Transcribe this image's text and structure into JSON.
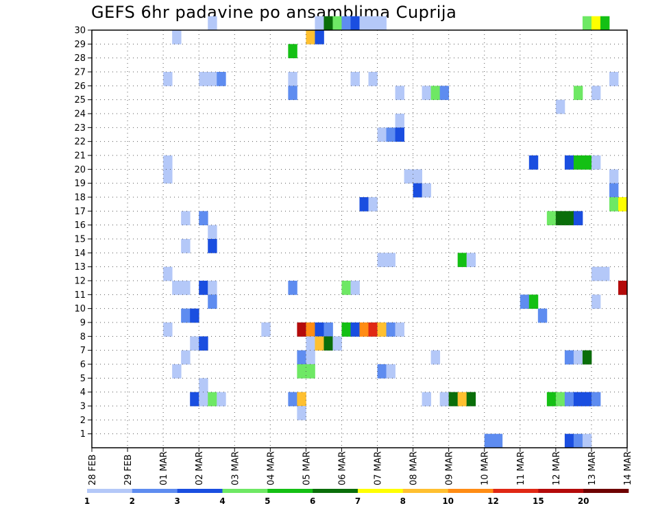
{
  "chart_data": {
    "type": "heatmap",
    "title": "GEFS 6hr padavine po ansamblima Cuprija",
    "y_categories": [
      "1",
      "2",
      "3",
      "4",
      "5",
      "6",
      "7",
      "8",
      "9",
      "10",
      "11",
      "12",
      "13",
      "14",
      "15",
      "16",
      "17",
      "18",
      "19",
      "20",
      "21",
      "22",
      "23",
      "24",
      "25",
      "26",
      "27",
      "28",
      "29",
      "30"
    ],
    "x_tick_labels": [
      "28 FEB",
      "29 FEB",
      "01 MAR",
      "02 MAR",
      "03 MAR",
      "04 MAR",
      "05 MAR",
      "06 MAR",
      "07 MAR",
      "08 MAR",
      "09 MAR",
      "10 MAR",
      "11 MAR",
      "12 MAR",
      "13 MAR",
      "14 MAR"
    ],
    "x_unit": "6-hour step",
    "xlim": [
      0,
      60
    ],
    "ylim": [
      0,
      30
    ],
    "grid": true,
    "legend": {
      "position": "bottom",
      "labels": [
        "1",
        "2",
        "3",
        "4",
        "5",
        "6",
        "7",
        "8",
        "10",
        "12",
        "15",
        "20"
      ],
      "colors": [
        "#b4c8f8",
        "#5e8cf0",
        "#1a4ee0",
        "#6ee864",
        "#14c014",
        "#0a6e0a",
        "#ffff00",
        "#ffc030",
        "#ff8c14",
        "#e02814",
        "#b40a0a",
        "#6e0000"
      ]
    },
    "cells": [
      {
        "member": 30,
        "step": 13,
        "color": "#b4c8f8"
      },
      {
        "member": 30,
        "step": 25,
        "color": "#b4c8f8"
      },
      {
        "member": 30,
        "step": 26,
        "color": "#0a6e0a"
      },
      {
        "member": 30,
        "step": 27,
        "color": "#6ee864"
      },
      {
        "member": 30,
        "step": 28,
        "color": "#5e8cf0"
      },
      {
        "member": 30,
        "step": 29,
        "color": "#1a4ee0"
      },
      {
        "member": 30,
        "step": 30,
        "color": "#b4c8f8"
      },
      {
        "member": 30,
        "step": 31,
        "color": "#b4c8f8"
      },
      {
        "member": 30,
        "step": 32,
        "color": "#b4c8f8"
      },
      {
        "member": 30,
        "step": 55,
        "color": "#6ee864"
      },
      {
        "member": 30,
        "step": 56,
        "color": "#ffff00"
      },
      {
        "member": 30,
        "step": 57,
        "color": "#14c014"
      },
      {
        "member": 29,
        "step": 9,
        "color": "#b4c8f8"
      },
      {
        "member": 29,
        "step": 24,
        "color": "#ffc030"
      },
      {
        "member": 29,
        "step": 25,
        "color": "#1a4ee0"
      },
      {
        "member": 28,
        "step": 22,
        "color": "#14c014"
      },
      {
        "member": 26,
        "step": 8,
        "color": "#b4c8f8"
      },
      {
        "member": 26,
        "step": 12,
        "color": "#b4c8f8"
      },
      {
        "member": 26,
        "step": 13,
        "color": "#b4c8f8"
      },
      {
        "member": 26,
        "step": 14,
        "color": "#5e8cf0"
      },
      {
        "member": 26,
        "step": 22,
        "color": "#b4c8f8"
      },
      {
        "member": 26,
        "step": 29,
        "color": "#b4c8f8"
      },
      {
        "member": 26,
        "step": 31,
        "color": "#b4c8f8"
      },
      {
        "member": 26,
        "step": 58,
        "color": "#b4c8f8"
      },
      {
        "member": 25,
        "step": 22,
        "color": "#5e8cf0"
      },
      {
        "member": 25,
        "step": 34,
        "color": "#b4c8f8"
      },
      {
        "member": 25,
        "step": 37,
        "color": "#b4c8f8"
      },
      {
        "member": 25,
        "step": 38,
        "color": "#6ee864"
      },
      {
        "member": 25,
        "step": 39,
        "color": "#5e8cf0"
      },
      {
        "member": 25,
        "step": 54,
        "color": "#6ee864"
      },
      {
        "member": 25,
        "step": 56,
        "color": "#b4c8f8"
      },
      {
        "member": 24,
        "step": 52,
        "color": "#b4c8f8"
      },
      {
        "member": 23,
        "step": 34,
        "color": "#b4c8f8"
      },
      {
        "member": 22,
        "step": 32,
        "color": "#b4c8f8"
      },
      {
        "member": 22,
        "step": 33,
        "color": "#5e8cf0"
      },
      {
        "member": 22,
        "step": 34,
        "color": "#1a4ee0"
      },
      {
        "member": 20,
        "step": 8,
        "color": "#b4c8f8"
      },
      {
        "member": 20,
        "step": 49,
        "color": "#1a4ee0"
      },
      {
        "member": 20,
        "step": 53,
        "color": "#1a4ee0"
      },
      {
        "member": 20,
        "step": 54,
        "color": "#14c014"
      },
      {
        "member": 20,
        "step": 55,
        "color": "#14c014"
      },
      {
        "member": 20,
        "step": 56,
        "color": "#b4c8f8"
      },
      {
        "member": 19,
        "step": 8,
        "color": "#b4c8f8"
      },
      {
        "member": 19,
        "step": 35,
        "color": "#b4c8f8"
      },
      {
        "member": 19,
        "step": 36,
        "color": "#b4c8f8"
      },
      {
        "member": 19,
        "step": 58,
        "color": "#b4c8f8"
      },
      {
        "member": 18,
        "step": 36,
        "color": "#1a4ee0"
      },
      {
        "member": 18,
        "step": 37,
        "color": "#b4c8f8"
      },
      {
        "member": 18,
        "step": 58,
        "color": "#5e8cf0"
      },
      {
        "member": 17,
        "step": 30,
        "color": "#1a4ee0"
      },
      {
        "member": 17,
        "step": 31,
        "color": "#b4c8f8"
      },
      {
        "member": 17,
        "step": 58,
        "color": "#6ee864"
      },
      {
        "member": 17,
        "step": 59,
        "color": "#ffff00"
      },
      {
        "member": 16,
        "step": 10,
        "color": "#b4c8f8"
      },
      {
        "member": 16,
        "step": 12,
        "color": "#5e8cf0"
      },
      {
        "member": 16,
        "step": 51,
        "color": "#6ee864"
      },
      {
        "member": 16,
        "step": 52,
        "color": "#0a6e0a"
      },
      {
        "member": 16,
        "step": 53,
        "color": "#0a6e0a"
      },
      {
        "member": 16,
        "step": 54,
        "color": "#1a4ee0"
      },
      {
        "member": 15,
        "step": 13,
        "color": "#b4c8f8"
      },
      {
        "member": 14,
        "step": 10,
        "color": "#b4c8f8"
      },
      {
        "member": 14,
        "step": 13,
        "color": "#1a4ee0"
      },
      {
        "member": 13,
        "step": 32,
        "color": "#b4c8f8"
      },
      {
        "member": 13,
        "step": 33,
        "color": "#b4c8f8"
      },
      {
        "member": 13,
        "step": 41,
        "color": "#14c014"
      },
      {
        "member": 13,
        "step": 42,
        "color": "#b4c8f8"
      },
      {
        "member": 12,
        "step": 8,
        "color": "#b4c8f8"
      },
      {
        "member": 12,
        "step": 56,
        "color": "#b4c8f8"
      },
      {
        "member": 12,
        "step": 57,
        "color": "#b4c8f8"
      },
      {
        "member": 11,
        "step": 9,
        "color": "#b4c8f8"
      },
      {
        "member": 11,
        "step": 10,
        "color": "#b4c8f8"
      },
      {
        "member": 11,
        "step": 12,
        "color": "#1a4ee0"
      },
      {
        "member": 11,
        "step": 13,
        "color": "#b4c8f8"
      },
      {
        "member": 11,
        "step": 22,
        "color": "#5e8cf0"
      },
      {
        "member": 11,
        "step": 28,
        "color": "#6ee864"
      },
      {
        "member": 11,
        "step": 29,
        "color": "#b4c8f8"
      },
      {
        "member": 11,
        "step": 59,
        "color": "#b40a0a"
      },
      {
        "member": 10,
        "step": 13,
        "color": "#5e8cf0"
      },
      {
        "member": 10,
        "step": 48,
        "color": "#5e8cf0"
      },
      {
        "member": 10,
        "step": 49,
        "color": "#14c014"
      },
      {
        "member": 10,
        "step": 56,
        "color": "#b4c8f8"
      },
      {
        "member": 9,
        "step": 10,
        "color": "#5e8cf0"
      },
      {
        "member": 9,
        "step": 11,
        "color": "#1a4ee0"
      },
      {
        "member": 9,
        "step": 50,
        "color": "#5e8cf0"
      },
      {
        "member": 8,
        "step": 8,
        "color": "#b4c8f8"
      },
      {
        "member": 8,
        "step": 19,
        "color": "#b4c8f8"
      },
      {
        "member": 8,
        "step": 23,
        "color": "#b40a0a"
      },
      {
        "member": 8,
        "step": 24,
        "color": "#ff8c14"
      },
      {
        "member": 8,
        "step": 25,
        "color": "#1a4ee0"
      },
      {
        "member": 8,
        "step": 26,
        "color": "#5e8cf0"
      },
      {
        "member": 8,
        "step": 28,
        "color": "#14c014"
      },
      {
        "member": 8,
        "step": 29,
        "color": "#1a4ee0"
      },
      {
        "member": 8,
        "step": 30,
        "color": "#ff8c14"
      },
      {
        "member": 8,
        "step": 31,
        "color": "#e02814"
      },
      {
        "member": 8,
        "step": 32,
        "color": "#ffc030"
      },
      {
        "member": 8,
        "step": 33,
        "color": "#5e8cf0"
      },
      {
        "member": 8,
        "step": 34,
        "color": "#b4c8f8"
      },
      {
        "member": 7,
        "step": 11,
        "color": "#b4c8f8"
      },
      {
        "member": 7,
        "step": 12,
        "color": "#1a4ee0"
      },
      {
        "member": 7,
        "step": 24,
        "color": "#b4c8f8"
      },
      {
        "member": 7,
        "step": 25,
        "color": "#ffc030"
      },
      {
        "member": 7,
        "step": 26,
        "color": "#0a6e0a"
      },
      {
        "member": 7,
        "step": 27,
        "color": "#b4c8f8"
      },
      {
        "member": 6,
        "step": 10,
        "color": "#b4c8f8"
      },
      {
        "member": 6,
        "step": 23,
        "color": "#5e8cf0"
      },
      {
        "member": 6,
        "step": 24,
        "color": "#b4c8f8"
      },
      {
        "member": 6,
        "step": 38,
        "color": "#b4c8f8"
      },
      {
        "member": 6,
        "step": 53,
        "color": "#5e8cf0"
      },
      {
        "member": 6,
        "step": 54,
        "color": "#b4c8f8"
      },
      {
        "member": 6,
        "step": 55,
        "color": "#0a6e0a"
      },
      {
        "member": 5,
        "step": 9,
        "color": "#b4c8f8"
      },
      {
        "member": 5,
        "step": 23,
        "color": "#6ee864"
      },
      {
        "member": 5,
        "step": 24,
        "color": "#6ee864"
      },
      {
        "member": 5,
        "step": 32,
        "color": "#5e8cf0"
      },
      {
        "member": 5,
        "step": 33,
        "color": "#b4c8f8"
      },
      {
        "member": 4,
        "step": 12,
        "color": "#b4c8f8"
      },
      {
        "member": 3,
        "step": 11,
        "color": "#1a4ee0"
      },
      {
        "member": 3,
        "step": 12,
        "color": "#b4c8f8"
      },
      {
        "member": 3,
        "step": 13,
        "color": "#6ee864"
      },
      {
        "member": 3,
        "step": 14,
        "color": "#b4c8f8"
      },
      {
        "member": 3,
        "step": 22,
        "color": "#5e8cf0"
      },
      {
        "member": 3,
        "step": 23,
        "color": "#ffc030"
      },
      {
        "member": 3,
        "step": 37,
        "color": "#b4c8f8"
      },
      {
        "member": 3,
        "step": 39,
        "color": "#b4c8f8"
      },
      {
        "member": 3,
        "step": 40,
        "color": "#0a6e0a"
      },
      {
        "member": 3,
        "step": 41,
        "color": "#ffc030"
      },
      {
        "member": 3,
        "step": 42,
        "color": "#0a6e0a"
      },
      {
        "member": 3,
        "step": 51,
        "color": "#14c014"
      },
      {
        "member": 3,
        "step": 52,
        "color": "#6ee864"
      },
      {
        "member": 3,
        "step": 53,
        "color": "#5e8cf0"
      },
      {
        "member": 3,
        "step": 54,
        "color": "#1a4ee0"
      },
      {
        "member": 3,
        "step": 55,
        "color": "#1a4ee0"
      },
      {
        "member": 3,
        "step": 56,
        "color": "#5e8cf0"
      },
      {
        "member": 2,
        "step": 23,
        "color": "#b4c8f8"
      },
      {
        "member": 0,
        "step": 44,
        "color": "#5e8cf0"
      },
      {
        "member": 0,
        "step": 45,
        "color": "#5e8cf0"
      },
      {
        "member": 0,
        "step": 53,
        "color": "#1a4ee0"
      },
      {
        "member": 0,
        "step": 54,
        "color": "#5e8cf0"
      },
      {
        "member": 0,
        "step": 55,
        "color": "#b4c8f8"
      }
    ]
  }
}
